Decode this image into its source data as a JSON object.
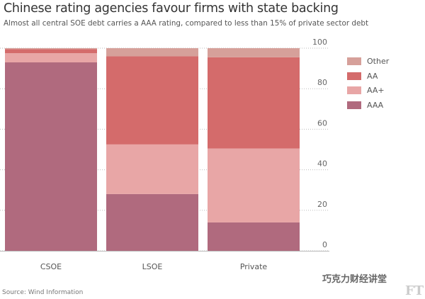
{
  "chart_data": {
    "type": "bar",
    "stacked": true,
    "title": "Chinese rating agencies favour firms with state backing",
    "subtitle": "Almost all central SOE debt carries a AAA rating, compared to less than 15% of private sector debt",
    "categories": [
      "CSOE",
      "LSOE",
      "Private"
    ],
    "series": [
      {
        "name": "AAA",
        "color": "#b06a7e",
        "values": [
          93,
          28,
          14
        ]
      },
      {
        "name": "AA+",
        "color": "#e8a6a6",
        "values": [
          4.5,
          24.5,
          36.5
        ]
      },
      {
        "name": "AA",
        "color": "#d46b6b",
        "values": [
          2,
          43.5,
          45
        ]
      },
      {
        "name": "Other",
        "color": "#d6a09a",
        "values": [
          0.5,
          4,
          4.5
        ]
      }
    ],
    "legend_order": [
      "Other",
      "AA",
      "AA+",
      "AAA"
    ],
    "yticks": [
      0,
      20,
      40,
      60,
      80,
      100
    ],
    "ylim": [
      0,
      100
    ],
    "xlabel": "",
    "ylabel": "",
    "grid": true,
    "legend_position": "right"
  },
  "source": "Source: Wind Information",
  "watermark": "巧克力财经讲堂",
  "logo": "FT"
}
